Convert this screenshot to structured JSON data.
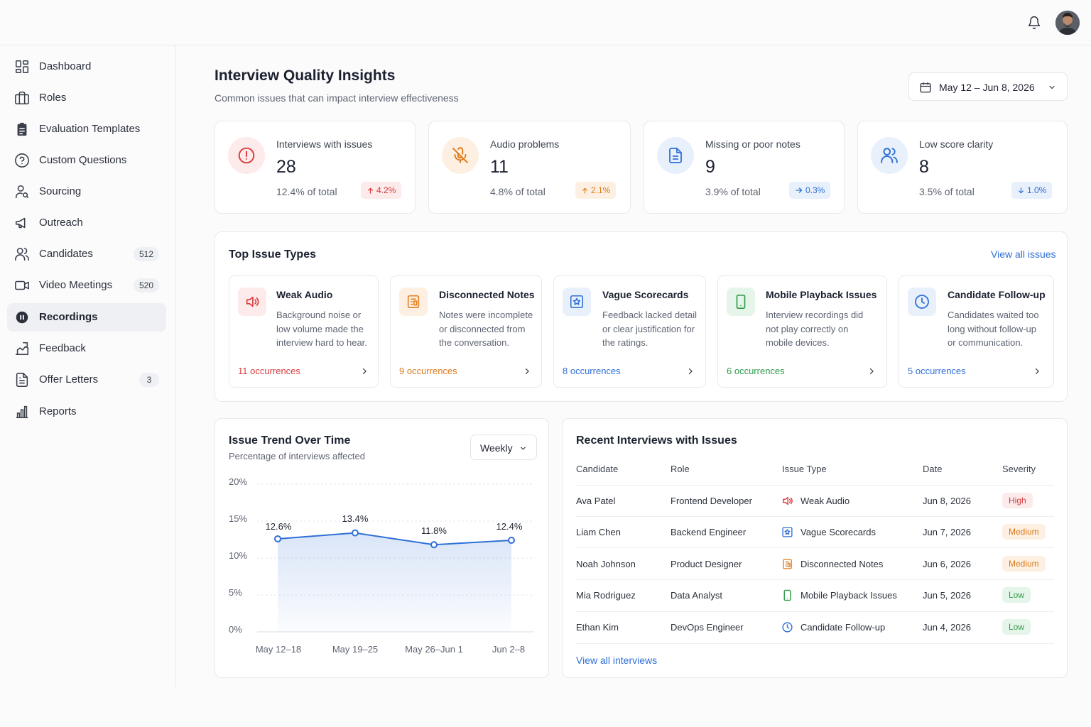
{
  "header": {
    "notifications_icon": "bell-icon",
    "avatar_icon": "user-avatar"
  },
  "sidebar": {
    "items": [
      {
        "label": "Dashboard",
        "icon": "grid-icon"
      },
      {
        "label": "Roles",
        "icon": "briefcase-icon"
      },
      {
        "label": "Evaluation Templates",
        "icon": "clipboard-icon"
      },
      {
        "label": "Custom Questions",
        "icon": "help-circle-icon"
      },
      {
        "label": "Sourcing",
        "icon": "user-search-icon"
      },
      {
        "label": "Outreach",
        "icon": "megaphone-icon"
      },
      {
        "label": "Candidates",
        "icon": "users-icon",
        "badge": "512"
      },
      {
        "label": "Video Meetings",
        "icon": "video-icon",
        "badge": "520"
      },
      {
        "label": "Recordings",
        "icon": "record-icon",
        "active": true
      },
      {
        "label": "Feedback",
        "icon": "feedback-chart-icon"
      },
      {
        "label": "Offer Letters",
        "icon": "document-icon",
        "badge": "3"
      },
      {
        "label": "Reports",
        "icon": "bar-chart-icon"
      }
    ]
  },
  "page": {
    "title": "Interview Quality Insights",
    "subtitle": "Common issues that can impact interview effectiveness",
    "date_range": "May 12 – Jun 8, 2026"
  },
  "stats": [
    {
      "label": "Interviews with issues",
      "value": "28",
      "pct": "12.4% of total",
      "delta": "4.2%",
      "direction": "up",
      "color": "#d93b3b",
      "bg": "#fdeaea",
      "icon": "alert-circle-icon"
    },
    {
      "label": "Audio problems",
      "value": "11",
      "pct": "4.8% of total",
      "delta": "2.1%",
      "direction": "up",
      "color": "#e07b1a",
      "bg": "#fdf0e2",
      "icon": "mic-off-icon"
    },
    {
      "label": "Missing or poor notes",
      "value": "9",
      "pct": "3.9% of total",
      "delta": "0.3%",
      "direction": "right",
      "color": "#2f6fd6",
      "bg": "#e8f0fc",
      "icon": "file-text-icon"
    },
    {
      "label": "Low score clarity",
      "value": "8",
      "pct": "3.5% of total",
      "delta": "1.0%",
      "direction": "down",
      "color": "#2f6fd6",
      "bg": "#e8f0fc",
      "icon": "users-icon"
    }
  ],
  "top_issues": {
    "title": "Top Issue Types",
    "view_all": "View all issues",
    "items": [
      {
        "title": "Weak Audio",
        "desc": "Background noise or low volume made the interview hard to hear.",
        "occ": "11 occurrences",
        "color": "#d93b3b",
        "bg": "#fdeaea",
        "icon": "speaker-icon"
      },
      {
        "title": "Disconnected Notes",
        "desc": "Notes were incomplete or disconnected from the conversation.",
        "occ": "9 occurrences",
        "color": "#e07b1a",
        "bg": "#fdf0e2",
        "icon": "notes-icon"
      },
      {
        "title": "Vague Scorecards",
        "desc": "Feedback lacked detail or clear justification for the ratings.",
        "occ": "8 occurrences",
        "color": "#2f6fd6",
        "bg": "#e8f0fc",
        "icon": "star-card-icon"
      },
      {
        "title": "Mobile Playback Issues",
        "desc": "Interview recordings did not play correctly on mobile devices.",
        "occ": "6 occurrences",
        "color": "#2f9a4a",
        "bg": "#e6f5ea",
        "icon": "smartphone-icon"
      },
      {
        "title": "Candidate Follow-up",
        "desc": "Candidates waited too long without follow-up or communication.",
        "occ": "5 occurrences",
        "color": "#2f6fd6",
        "bg": "#e8f0fc",
        "icon": "clock-icon"
      }
    ]
  },
  "trend": {
    "title": "Issue Trend Over Time",
    "subtitle": "Percentage of interviews affected",
    "period": "Weekly"
  },
  "chart_data": {
    "type": "area",
    "categories": [
      "May 12–18",
      "May 19–25",
      "May 26–Jun 1",
      "Jun 2–8"
    ],
    "values": [
      12.6,
      13.4,
      11.8,
      12.4
    ],
    "value_labels": [
      "12.6%",
      "13.4%",
      "11.8%",
      "12.4%"
    ],
    "yticks": [
      "20%",
      "15%",
      "10%",
      "5%",
      "0%"
    ],
    "ylim": [
      0,
      20
    ],
    "grid": true,
    "color": "#2f6fd6"
  },
  "recent": {
    "title": "Recent Interviews with Issues",
    "columns": [
      "Candidate",
      "Role",
      "Issue Type",
      "Date",
      "Severity"
    ],
    "rows": [
      {
        "candidate": "Ava Patel",
        "role": "Frontend Developer",
        "issue": "Weak Audio",
        "issue_icon": "speaker-icon",
        "date": "Jun 8, 2026",
        "severity": "High"
      },
      {
        "candidate": "Liam Chen",
        "role": "Backend Engineer",
        "issue": "Vague Scorecards",
        "issue_icon": "star-card-icon",
        "date": "Jun 7, 2026",
        "severity": "Medium"
      },
      {
        "candidate": "Noah Johnson",
        "role": "Product Designer",
        "issue": "Disconnected Notes",
        "issue_icon": "notes-icon",
        "date": "Jun 6, 2026",
        "severity": "Medium"
      },
      {
        "candidate": "Mia Rodriguez",
        "role": "Data Analyst",
        "issue": "Mobile Playback Issues",
        "issue_icon": "smartphone-icon",
        "date": "Jun 5, 2026",
        "severity": "Low"
      },
      {
        "candidate": "Ethan Kim",
        "role": "DevOps Engineer",
        "issue": "Candidate Follow-up",
        "issue_icon": "clock-icon",
        "date": "Jun 4, 2026",
        "severity": "Low"
      }
    ],
    "view_all": "View all interviews"
  },
  "severity_colors": {
    "High": {
      "fg": "#d93b3b",
      "bg": "#fdeaea"
    },
    "Medium": {
      "fg": "#d9791a",
      "bg": "#fdf0e2"
    },
    "Low": {
      "fg": "#2f9a4a",
      "bg": "#e6f5ea"
    }
  }
}
